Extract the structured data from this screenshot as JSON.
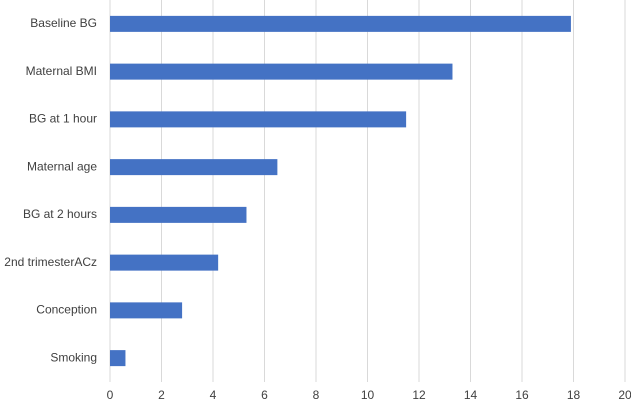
{
  "chart_data": {
    "type": "bar",
    "orientation": "horizontal",
    "categories": [
      "Baseline BG",
      "Maternal BMI",
      "BG at 1 hour",
      "Maternal age",
      "BG at 2 hours",
      "2nd trimesterACz",
      "Conception",
      "Smoking"
    ],
    "values": [
      17.9,
      13.3,
      11.5,
      6.5,
      5.3,
      4.2,
      2.8,
      0.6
    ],
    "color": "#4472c4",
    "xlim": [
      0,
      20
    ],
    "xticks": [
      0,
      2,
      4,
      6,
      8,
      10,
      12,
      14,
      16,
      18,
      20
    ],
    "grid": true
  }
}
